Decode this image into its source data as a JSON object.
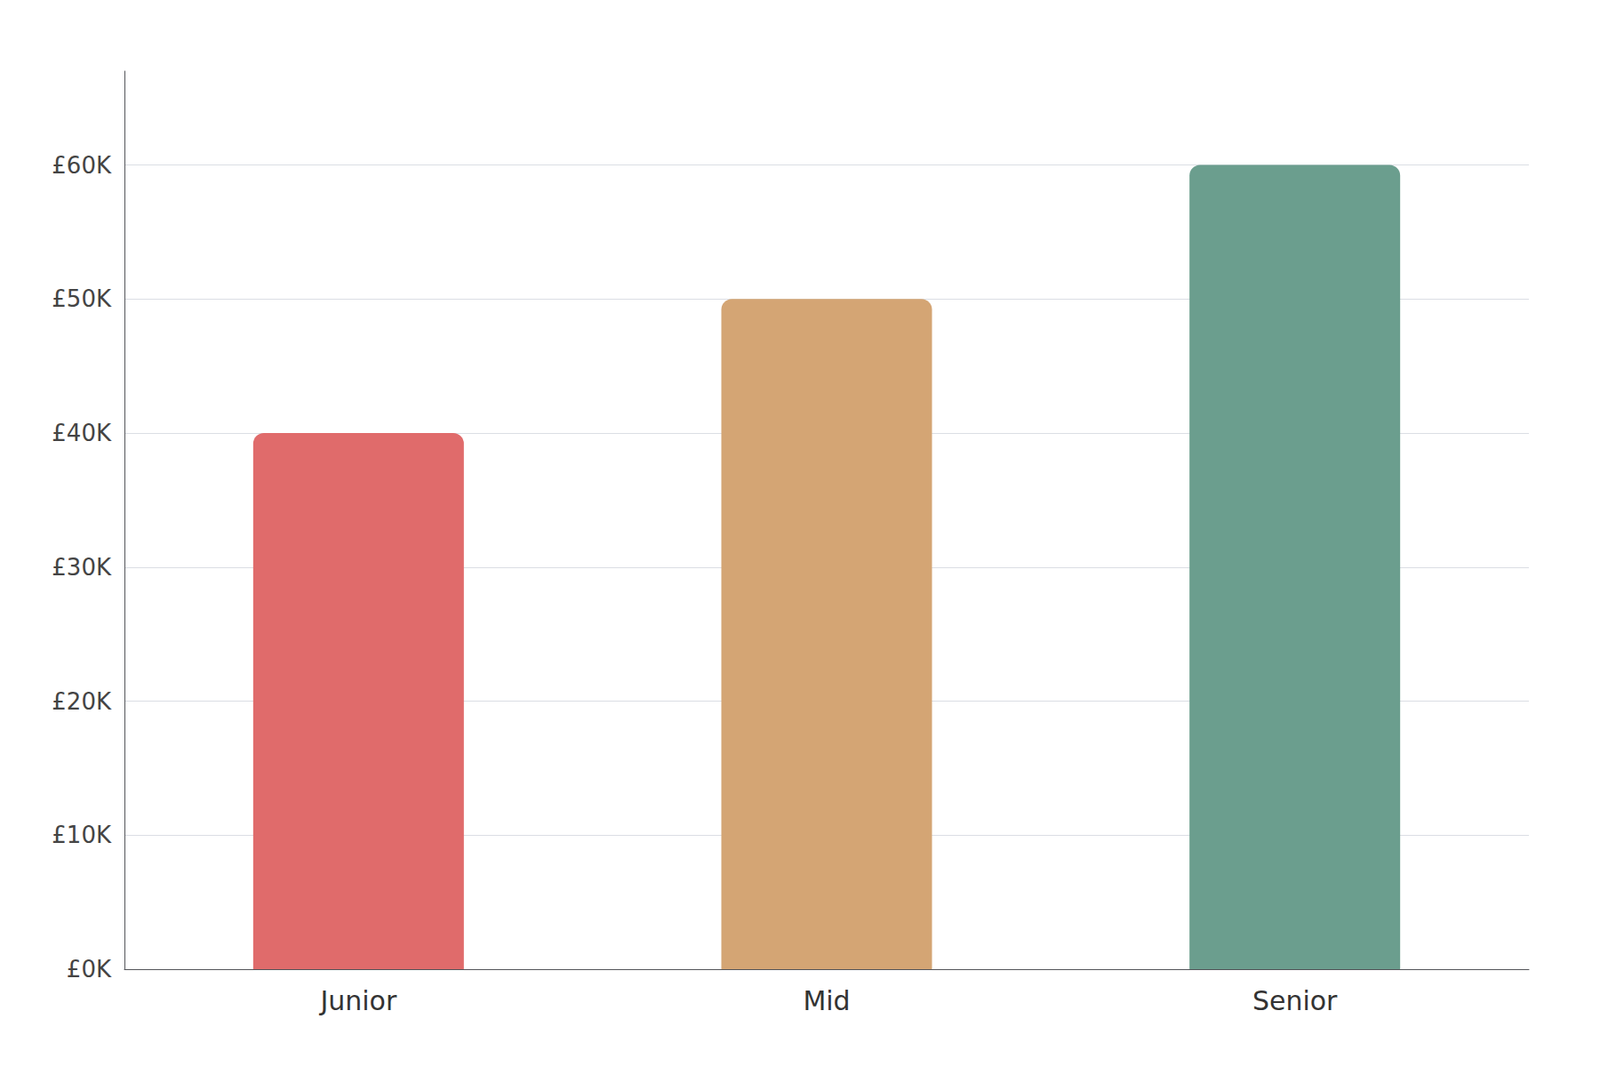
{
  "chart_data": {
    "type": "bar",
    "categories": [
      "Junior",
      "Mid",
      "Senior"
    ],
    "values": [
      40000,
      50000,
      60000
    ],
    "colors": [
      "#E06B6B",
      "#D4A574",
      "#6B9E8E"
    ],
    "ylim": [
      0,
      67000
    ],
    "yticks": [
      {
        "value": 0,
        "label": "£0K"
      },
      {
        "value": 10000,
        "label": "£10K"
      },
      {
        "value": 20000,
        "label": "£20K"
      },
      {
        "value": 30000,
        "label": "£30K"
      },
      {
        "value": 40000,
        "label": "£40K"
      },
      {
        "value": 50000,
        "label": "£50K"
      },
      {
        "value": 60000,
        "label": "£60K"
      }
    ],
    "grid": true
  }
}
